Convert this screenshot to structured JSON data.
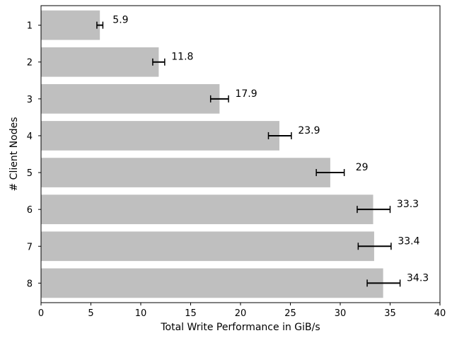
{
  "chart_data": {
    "type": "bar",
    "orientation": "horizontal",
    "categories": [
      "1",
      "2",
      "3",
      "4",
      "5",
      "6",
      "7",
      "8"
    ],
    "values": [
      5.9,
      11.8,
      17.9,
      23.9,
      29,
      33.3,
      33.4,
      34.3
    ],
    "error_low": [
      5.6,
      11.2,
      17.0,
      22.8,
      27.6,
      31.7,
      31.8,
      32.7
    ],
    "error_high": [
      6.2,
      12.4,
      18.8,
      25.1,
      30.4,
      35.0,
      35.1,
      36.0
    ],
    "data_labels": [
      "5.9",
      "11.8",
      "17.9",
      "23.9",
      "29",
      "33.3",
      "33.4",
      "34.3"
    ],
    "xlabel": "Total Write Performance in GiB/s",
    "ylabel": "# Client Nodes",
    "xlim": [
      0,
      40
    ],
    "xticks": [
      0,
      5,
      10,
      15,
      20,
      25,
      30,
      35,
      40
    ],
    "grid": false,
    "legend": "none",
    "colors": {
      "bar": "#bfbfbf",
      "error": "#000000",
      "axis": "#000000"
    }
  }
}
